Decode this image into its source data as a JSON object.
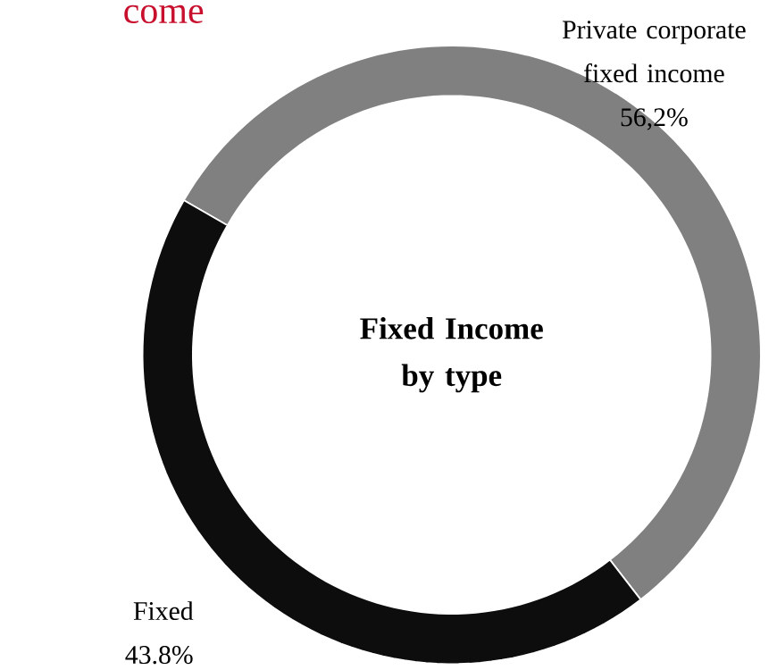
{
  "chart_data": {
    "type": "donut",
    "title": "come",
    "categories": [
      "Private corporate fixed income",
      "Fixed"
    ],
    "values": [
      56.2,
      43.8
    ],
    "colors": [
      "#808080",
      "#0d0d0d"
    ],
    "value_labels": [
      "56,2%",
      "43.8%"
    ],
    "annotations": [
      "Fixed Income by type"
    ]
  }
}
